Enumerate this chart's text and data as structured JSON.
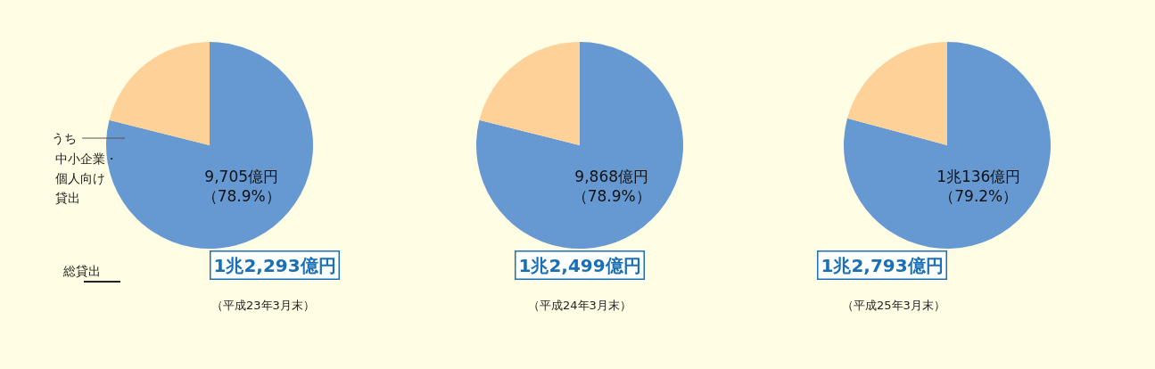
{
  "chart_data": [
    {
      "type": "pie",
      "categories": [
        null,
        null
      ],
      "values": [
        78.9,
        21.1
      ],
      "colors": [
        "#6699d2",
        "#fdd197"
      ],
      "value_labels": [
        "9,705億円（78.9%）",
        null
      ],
      "annotations": [
        "1兆2,293億円",
        "（平成23年3月末）",
        "うち",
        "中小企業・",
        "個人向け",
        "貸出",
        "総貸出"
      ]
    },
    {
      "type": "pie",
      "categories": [
        null,
        null
      ],
      "values": [
        78.9,
        21.1
      ],
      "colors": [
        "#6699d2",
        "#fdd197"
      ],
      "value_labels": [
        "9,868億円（78.9%）",
        null
      ],
      "annotations": [
        "1兆2,499億円",
        "（平成24年3月末）"
      ]
    },
    {
      "type": "pie",
      "categories": [
        null,
        null
      ],
      "values": [
        79.2,
        20.8
      ],
      "colors": [
        "#6699d2",
        "#fdd197"
      ],
      "value_labels": [
        "1兆136億円（79.2%）",
        null
      ],
      "annotations": [
        "1兆2,793億円",
        "（平成25年3月末）"
      ]
    }
  ]
}
